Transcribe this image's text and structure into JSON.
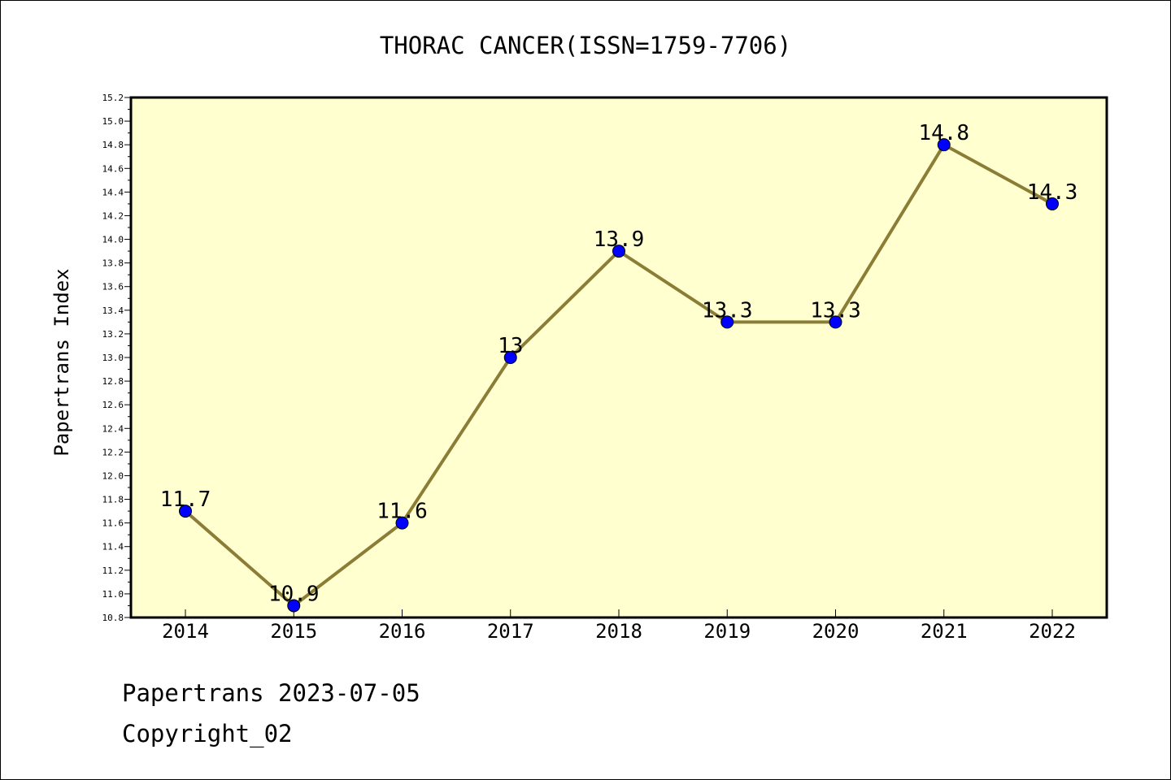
{
  "chart_data": {
    "type": "line",
    "title": "THORAC CANCER(ISSN=1759-7706)",
    "xlabel": "",
    "ylabel": "Papertrans Index",
    "categories": [
      "2014",
      "2015",
      "2016",
      "2017",
      "2018",
      "2019",
      "2020",
      "2021",
      "2022"
    ],
    "series": [
      {
        "values": [
          11.7,
          10.9,
          11.6,
          13,
          13.9,
          13.3,
          13.3,
          14.8,
          14.3
        ],
        "labels": [
          "11.7",
          "10.9",
          "11.6",
          "13",
          "13.9",
          "13.3",
          "13.3",
          "14.8",
          "14.3"
        ]
      }
    ],
    "ylim": [
      10.8,
      15.2
    ],
    "yticks": [
      "10.8",
      "11.0",
      "11.2",
      "11.4",
      "11.6",
      "11.8",
      "12.0",
      "12.2",
      "12.4",
      "12.6",
      "12.8",
      "13.0",
      "13.2",
      "13.4",
      "13.6",
      "13.8",
      "14.0",
      "14.2",
      "14.4",
      "14.6",
      "14.8",
      "15.0",
      "15.2"
    ],
    "grid": false,
    "legend": "none",
    "colors": {
      "plot_background": "#ffffd0",
      "line": "#8b7d36",
      "marker": "#0000ff"
    }
  },
  "footer": {
    "date_line": "Papertrans 2023-07-05",
    "copyright": "Copyright_02"
  }
}
